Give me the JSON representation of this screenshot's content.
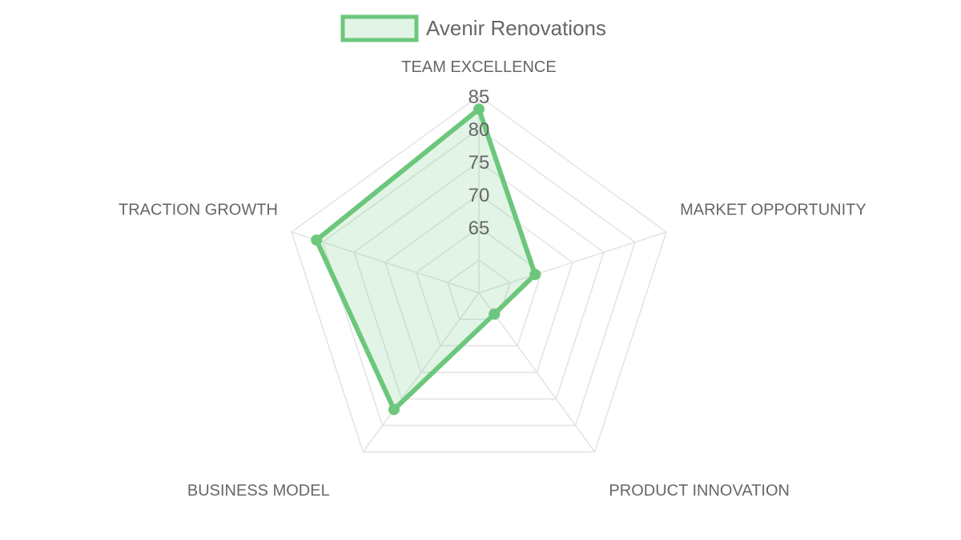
{
  "chart_data": {
    "type": "radar",
    "legend": {
      "position": "top",
      "label": "Avenir Renovations"
    },
    "axes": [
      "TEAM EXCELLENCE",
      "MARKET OPPORTUNITY",
      "PRODUCT INNOVATION",
      "BUSINESS MODEL",
      "TRACTION GROWTH"
    ],
    "r_min": 55,
    "r_max": 85,
    "ticks": [
      65,
      70,
      75,
      80,
      85
    ],
    "grid": true,
    "series": [
      {
        "name": "Avenir Renovations",
        "values": [
          83,
          64,
          59,
          77,
          81
        ],
        "line_color": "#6cc77c",
        "fill_color": "#6cc77c"
      }
    ]
  }
}
